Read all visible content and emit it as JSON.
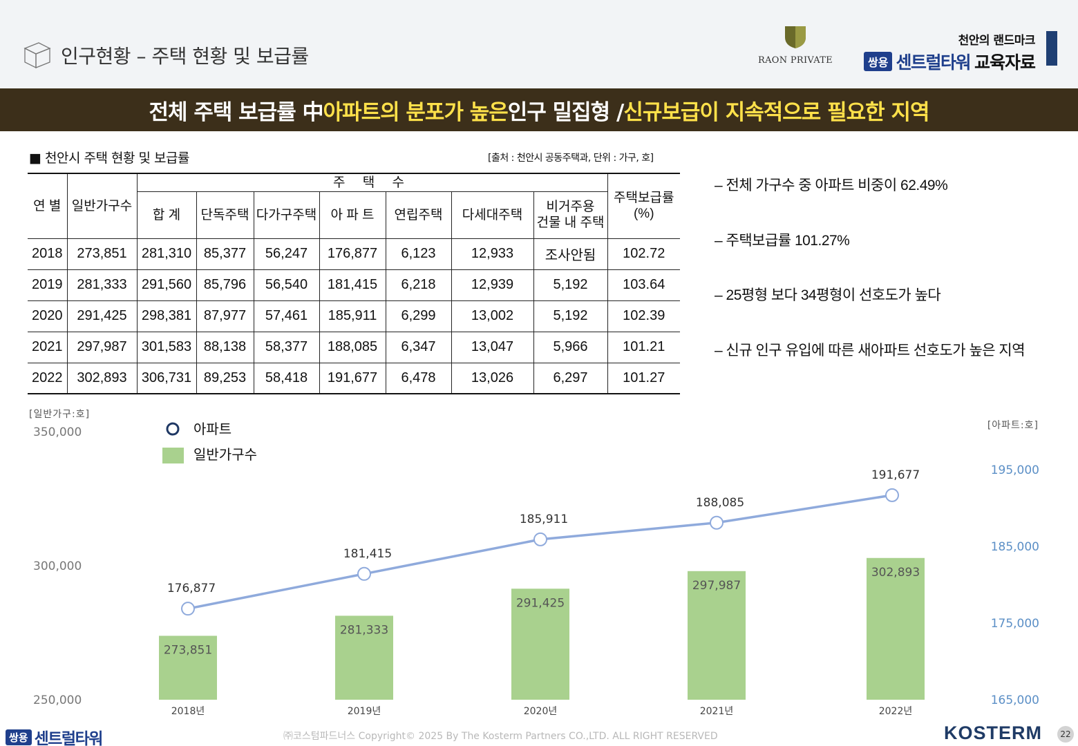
{
  "header": {
    "title": "인구현황 – 주택 현황 및 보급률",
    "partner_logo_text": "RAON PRIVATE",
    "brand_tagline": "천안의 랜드마크",
    "brand_badge": "쌍용",
    "brand_name": "센트럴타워",
    "brand_suffix": "교육자료",
    "accent_color": "#1f3f73"
  },
  "banner": {
    "segments": [
      {
        "text": "전체 주택 보급률 中 ",
        "color": "white"
      },
      {
        "text": "아파트의 분포가 높은",
        "color": "yellow"
      },
      {
        "text": " 인구 밀집형 / ",
        "color": "white"
      },
      {
        "text": "신규보급이 지속적으로 필요한 지역",
        "color": "yellow"
      }
    ],
    "background": "#3c2f1a"
  },
  "table": {
    "title": "■ 천안시 주택 현황 및 보급률",
    "source": "[출처 : 천안시 공동주택과, 단위 : 가구, 호]",
    "col_year": "연  별",
    "col_households": "일반가구수",
    "group_header": "주 택 수",
    "col_supply_line1": "주택보급률",
    "col_supply_line2": "(%)",
    "sub_headers": [
      "합  계",
      "단독주택",
      "다가구주택",
      "아 파 트",
      "연립주택",
      "다세대주택"
    ],
    "sub_nonres_line1": "비거주용",
    "sub_nonres_line2": "건물 내 주택",
    "rows": [
      [
        "2018",
        "273,851",
        "281,310",
        "85,377",
        "56,247",
        "176,877",
        "6,123",
        "12,933",
        "조사안됨",
        "102.72"
      ],
      [
        "2019",
        "281,333",
        "291,560",
        "85,796",
        "56,540",
        "181,415",
        "6,218",
        "12,939",
        "5,192",
        "103.64"
      ],
      [
        "2020",
        "291,425",
        "298,381",
        "87,977",
        "57,461",
        "185,911",
        "6,299",
        "13,002",
        "5,192",
        "102.39"
      ],
      [
        "2021",
        "297,987",
        "301,583",
        "88,138",
        "58,377",
        "188,085",
        "6,347",
        "13,047",
        "5,966",
        "101.21"
      ],
      [
        "2022",
        "302,893",
        "306,731",
        "89,253",
        "58,418",
        "191,677",
        "6,478",
        "13,026",
        "6,297",
        "101.27"
      ]
    ]
  },
  "bullets": [
    "– 전체 가구수 중 아파트 비중이 62.49%",
    "– 주택보급률 101.27%",
    "– 25평형 보다 34평형이 선호도가 높다",
    "– 신규 인구 유입에 따른 새아파트 선호도가 높은 지역"
  ],
  "chart_data": {
    "type": "bar",
    "categories": [
      "2018년",
      "2019년",
      "2020년",
      "2021년",
      "2022년"
    ],
    "left_axis_label": "[일반가구:호]",
    "right_axis_label": "[아파트:호]",
    "left_ylim": [
      250000,
      350000
    ],
    "left_ticks": [
      "250,000",
      "300,000",
      "350,000"
    ],
    "right_ylim": [
      165000,
      200000
    ],
    "right_ticks": [
      "165,000",
      "175,000",
      "185,000",
      "195,000"
    ],
    "legend_position": "top-left",
    "grid": false,
    "series": [
      {
        "name": "일반가구수",
        "type": "bar",
        "axis": "left",
        "color": "#a9d18e",
        "values": [
          273851,
          281333,
          291425,
          297987,
          302893
        ],
        "labels": [
          "273,851",
          "281,333",
          "291,425",
          "297,987",
          "302,893"
        ]
      },
      {
        "name": "아파트",
        "type": "line",
        "axis": "right",
        "color": "#8faadc",
        "marker_edge": "#1f3864",
        "values": [
          176877,
          181415,
          185911,
          188085,
          191677
        ],
        "labels": [
          "176,877",
          "181,415",
          "185,911",
          "188,085",
          "191,677"
        ]
      }
    ]
  },
  "footer": {
    "badge": "쌍용",
    "name": "센트럴타워",
    "copyright": "㈜코스텀파드너스 Copyright© 2025 By The Kosterm Partners CO.,LTD. ALL RIGHT RESERVED",
    "company": "KOSTERM",
    "page": "22"
  }
}
